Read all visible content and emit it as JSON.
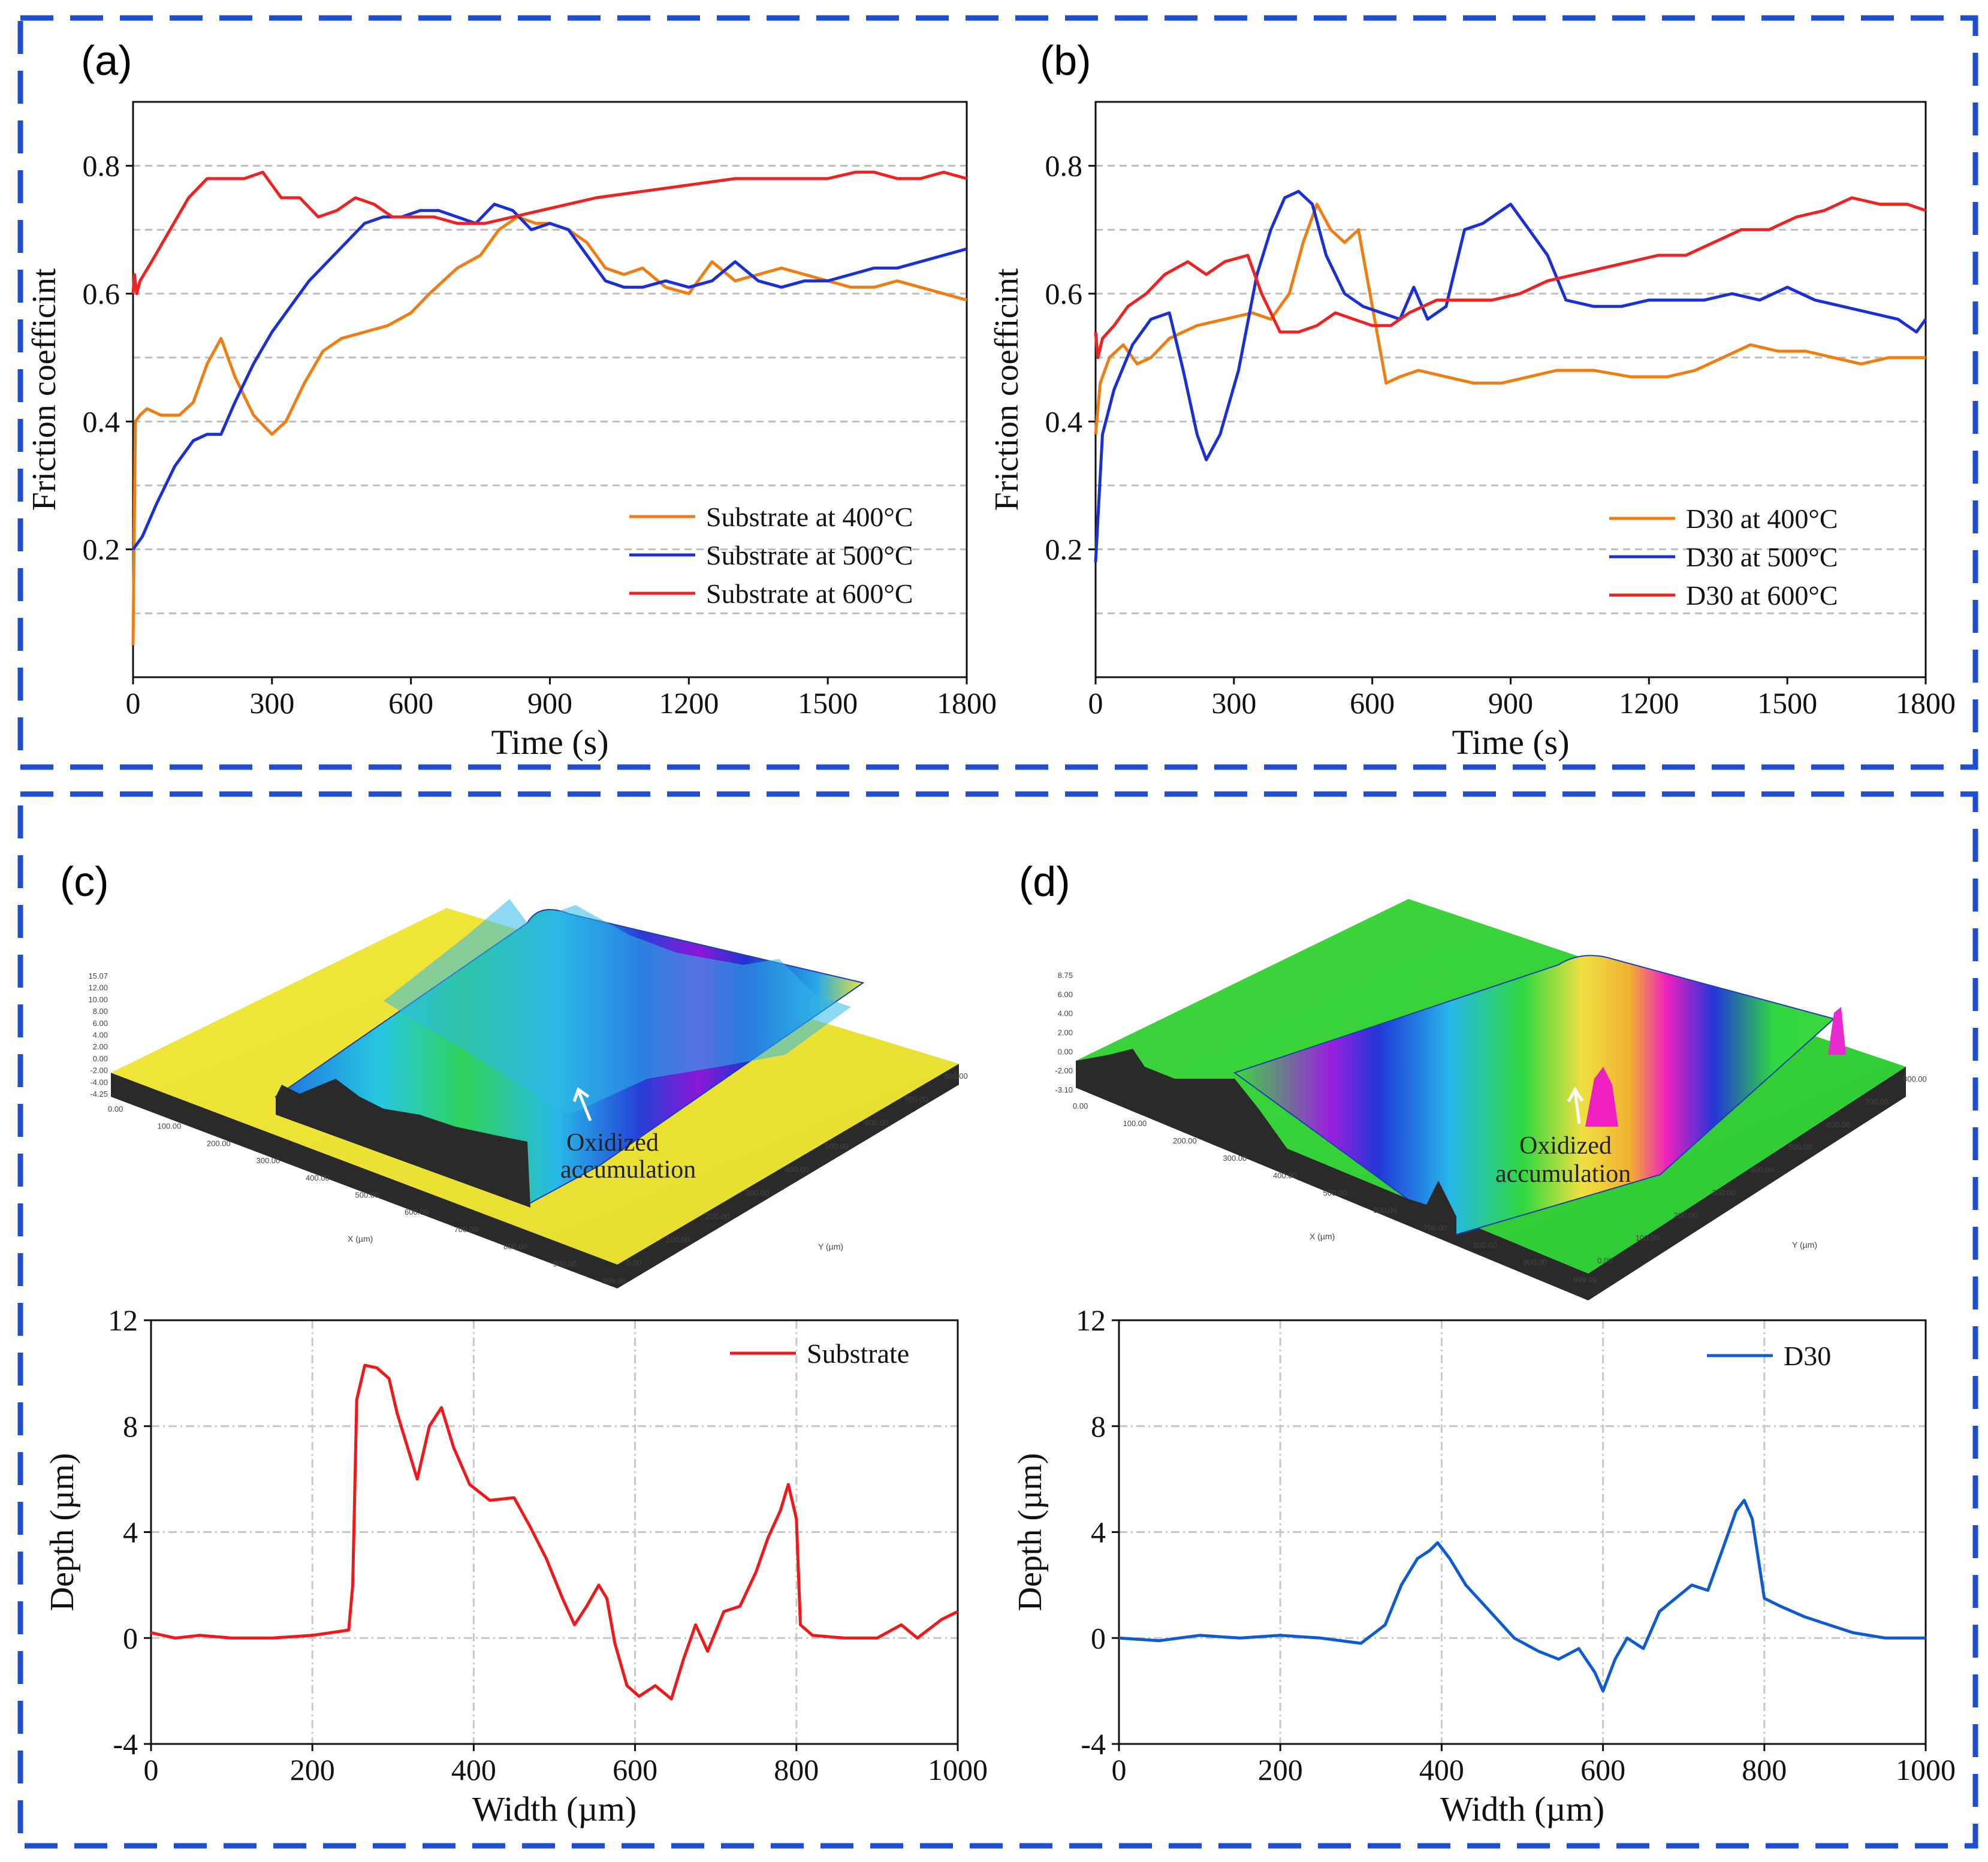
{
  "panels": {
    "a": {
      "label": "(a)"
    },
    "b": {
      "label": "(b)"
    },
    "c": {
      "label": "(c)"
    },
    "d": {
      "label": "(d)"
    }
  },
  "colors": {
    "frame": "#1f4fd0",
    "orange": "#f07d12",
    "blue": "#1a2fd6",
    "red": "#ee2222",
    "profile_red": "#f01818",
    "profile_blue": "#0d5bd1",
    "grid": "#bdbdbd",
    "surface_base": "#2a2a2a"
  },
  "chart_data": [
    {
      "id": "a",
      "type": "line",
      "xlabel": "Time (s)",
      "ylabel": "Friction coefficint",
      "xlim": [
        0,
        1800
      ],
      "ylim": [
        0,
        0.9
      ],
      "xticks": [
        0,
        300,
        600,
        900,
        1200,
        1500,
        1800
      ],
      "xtick_labels": [
        "0",
        "300",
        "600",
        "900",
        "1200",
        "1500",
        "1800"
      ],
      "yticks": [
        0.2,
        0.4,
        0.6,
        0.8
      ],
      "ytick_labels": [
        "0.2",
        "0.4",
        "0.6",
        "0.8"
      ],
      "grid_y": [
        0.1,
        0.2,
        0.3,
        0.4,
        0.5,
        0.6,
        0.7,
        0.8
      ],
      "series": [
        {
          "name": "Substrate at 400°C",
          "color": "#f07d12",
          "x": [
            0,
            5,
            15,
            30,
            60,
            100,
            130,
            160,
            190,
            220,
            260,
            300,
            330,
            370,
            410,
            450,
            500,
            550,
            600,
            640,
            700,
            750,
            790,
            830,
            870,
            900,
            940,
            980,
            1020,
            1060,
            1100,
            1150,
            1200,
            1250,
            1300,
            1350,
            1400,
            1450,
            1500,
            1550,
            1600,
            1650,
            1700,
            1750,
            1800
          ],
          "y": [
            0.05,
            0.4,
            0.41,
            0.42,
            0.41,
            0.41,
            0.43,
            0.49,
            0.53,
            0.47,
            0.41,
            0.38,
            0.4,
            0.46,
            0.51,
            0.53,
            0.54,
            0.55,
            0.57,
            0.6,
            0.64,
            0.66,
            0.7,
            0.72,
            0.71,
            0.71,
            0.7,
            0.68,
            0.64,
            0.63,
            0.64,
            0.61,
            0.6,
            0.65,
            0.62,
            0.63,
            0.64,
            0.63,
            0.62,
            0.61,
            0.61,
            0.62,
            0.61,
            0.6,
            0.59
          ]
        },
        {
          "name": "Substrate at 500°C",
          "color": "#1a2fd6",
          "x": [
            0,
            20,
            50,
            90,
            130,
            160,
            190,
            220,
            260,
            300,
            340,
            380,
            420,
            460,
            500,
            540,
            580,
            620,
            660,
            700,
            740,
            780,
            820,
            860,
            900,
            940,
            980,
            1020,
            1060,
            1100,
            1150,
            1200,
            1250,
            1300,
            1350,
            1400,
            1450,
            1500,
            1550,
            1600,
            1650,
            1700,
            1750,
            1800
          ],
          "y": [
            0.2,
            0.22,
            0.27,
            0.33,
            0.37,
            0.38,
            0.38,
            0.43,
            0.49,
            0.54,
            0.58,
            0.62,
            0.65,
            0.68,
            0.71,
            0.72,
            0.72,
            0.73,
            0.73,
            0.72,
            0.71,
            0.74,
            0.73,
            0.7,
            0.71,
            0.7,
            0.66,
            0.62,
            0.61,
            0.61,
            0.62,
            0.61,
            0.62,
            0.65,
            0.62,
            0.61,
            0.62,
            0.62,
            0.63,
            0.64,
            0.64,
            0.65,
            0.66,
            0.67
          ]
        },
        {
          "name": "Substrate at 600°C",
          "color": "#ee2222",
          "x": [
            0,
            3,
            8,
            15,
            40,
            80,
            120,
            160,
            200,
            240,
            280,
            320,
            360,
            400,
            440,
            480,
            520,
            560,
            600,
            650,
            700,
            760,
            820,
            880,
            940,
            1000,
            1100,
            1200,
            1300,
            1400,
            1500,
            1560,
            1600,
            1650,
            1700,
            1750,
            1800
          ],
          "y": [
            0.6,
            0.63,
            0.6,
            0.62,
            0.65,
            0.7,
            0.75,
            0.78,
            0.78,
            0.78,
            0.79,
            0.75,
            0.75,
            0.72,
            0.73,
            0.75,
            0.74,
            0.72,
            0.72,
            0.72,
            0.71,
            0.71,
            0.72,
            0.73,
            0.74,
            0.75,
            0.76,
            0.77,
            0.78,
            0.78,
            0.78,
            0.79,
            0.79,
            0.78,
            0.78,
            0.79,
            0.78
          ]
        }
      ],
      "legend_position": "lower-right"
    },
    {
      "id": "b",
      "type": "line",
      "xlabel": "Time (s)",
      "ylabel": "Friction coefficint",
      "xlim": [
        0,
        1800
      ],
      "ylim": [
        0,
        0.9
      ],
      "xticks": [
        0,
        300,
        600,
        900,
        1200,
        1500,
        1800
      ],
      "xtick_labels": [
        "0",
        "300",
        "600",
        "900",
        "1200",
        "1500",
        "1800"
      ],
      "yticks": [
        0.2,
        0.4,
        0.6,
        0.8
      ],
      "ytick_labels": [
        "0.2",
        "0.4",
        "0.6",
        "0.8"
      ],
      "grid_y": [
        0.1,
        0.2,
        0.3,
        0.4,
        0.5,
        0.6,
        0.7,
        0.8
      ],
      "series": [
        {
          "name": "D30 at 400°C",
          "color": "#f07d12",
          "x": [
            0,
            10,
            30,
            60,
            90,
            120,
            160,
            220,
            280,
            340,
            380,
            420,
            450,
            480,
            510,
            540,
            570,
            600,
            630,
            660,
            700,
            760,
            820,
            880,
            940,
            1000,
            1080,
            1160,
            1240,
            1300,
            1360,
            1420,
            1480,
            1540,
            1600,
            1660,
            1720,
            1800
          ],
          "y": [
            0.38,
            0.46,
            0.5,
            0.52,
            0.49,
            0.5,
            0.53,
            0.55,
            0.56,
            0.57,
            0.56,
            0.6,
            0.68,
            0.74,
            0.7,
            0.68,
            0.7,
            0.58,
            0.46,
            0.47,
            0.48,
            0.47,
            0.46,
            0.46,
            0.47,
            0.48,
            0.48,
            0.47,
            0.47,
            0.48,
            0.5,
            0.52,
            0.51,
            0.51,
            0.5,
            0.49,
            0.5,
            0.5
          ]
        },
        {
          "name": "D30 at 500°C",
          "color": "#1a2fd6",
          "x": [
            0,
            15,
            40,
            80,
            120,
            160,
            190,
            220,
            240,
            270,
            310,
            350,
            380,
            410,
            440,
            470,
            500,
            540,
            580,
            620,
            660,
            690,
            720,
            760,
            800,
            840,
            880,
            900,
            940,
            980,
            1020,
            1080,
            1140,
            1200,
            1260,
            1320,
            1380,
            1440,
            1500,
            1560,
            1620,
            1680,
            1740,
            1780,
            1800
          ],
          "y": [
            0.18,
            0.38,
            0.45,
            0.52,
            0.56,
            0.57,
            0.48,
            0.38,
            0.34,
            0.38,
            0.48,
            0.63,
            0.7,
            0.75,
            0.76,
            0.74,
            0.66,
            0.6,
            0.58,
            0.57,
            0.56,
            0.61,
            0.56,
            0.58,
            0.7,
            0.71,
            0.73,
            0.74,
            0.7,
            0.66,
            0.59,
            0.58,
            0.58,
            0.59,
            0.59,
            0.59,
            0.6,
            0.59,
            0.61,
            0.59,
            0.58,
            0.57,
            0.56,
            0.54,
            0.56
          ]
        },
        {
          "name": "D30 at 600°C",
          "color": "#ee2222",
          "x": [
            0,
            5,
            15,
            40,
            70,
            110,
            150,
            200,
            240,
            280,
            330,
            360,
            400,
            440,
            480,
            520,
            560,
            600,
            640,
            680,
            740,
            800,
            860,
            920,
            980,
            1040,
            1100,
            1160,
            1220,
            1280,
            1340,
            1400,
            1460,
            1520,
            1580,
            1640,
            1700,
            1760,
            1800
          ],
          "y": [
            0.54,
            0.5,
            0.53,
            0.55,
            0.58,
            0.6,
            0.63,
            0.65,
            0.63,
            0.65,
            0.66,
            0.6,
            0.54,
            0.54,
            0.55,
            0.57,
            0.56,
            0.55,
            0.55,
            0.57,
            0.59,
            0.59,
            0.59,
            0.6,
            0.62,
            0.63,
            0.64,
            0.65,
            0.66,
            0.66,
            0.68,
            0.7,
            0.7,
            0.72,
            0.73,
            0.75,
            0.74,
            0.74,
            0.73
          ]
        }
      ],
      "legend_position": "lower-right"
    },
    {
      "id": "c",
      "type": "line",
      "xlabel": "Width (µm)",
      "ylabel": "Depth (µm)",
      "xlim": [
        0,
        1000
      ],
      "ylim": [
        -4,
        12
      ],
      "xticks": [
        0,
        200,
        400,
        600,
        800,
        1000
      ],
      "xtick_labels": [
        "0",
        "200",
        "400",
        "600",
        "800",
        "1000"
      ],
      "yticks": [
        -4,
        0,
        4,
        8,
        12
      ],
      "ytick_labels": [
        "-4",
        "0",
        "4",
        "8",
        "12"
      ],
      "series": [
        {
          "name": "Substrate",
          "color": "#f01818",
          "x": [
            0,
            30,
            60,
            100,
            150,
            200,
            245,
            250,
            255,
            265,
            280,
            295,
            305,
            320,
            330,
            345,
            360,
            375,
            395,
            420,
            450,
            470,
            490,
            510,
            525,
            540,
            555,
            565,
            575,
            590,
            605,
            625,
            645,
            660,
            675,
            690,
            710,
            730,
            750,
            765,
            780,
            790,
            800,
            805,
            820,
            860,
            900,
            930,
            950,
            980,
            1000
          ],
          "y": [
            0.2,
            0.0,
            0.1,
            0.0,
            0.0,
            0.1,
            0.3,
            2.0,
            9.0,
            10.3,
            10.2,
            9.8,
            8.5,
            7.0,
            6.0,
            8.0,
            8.7,
            7.2,
            5.8,
            5.2,
            5.3,
            4.2,
            3.0,
            1.5,
            0.5,
            1.2,
            2.0,
            1.5,
            -0.2,
            -1.8,
            -2.2,
            -1.8,
            -2.3,
            -0.8,
            0.5,
            -0.5,
            1.0,
            1.2,
            2.5,
            3.8,
            4.8,
            5.8,
            4.5,
            0.5,
            0.1,
            0.0,
            0.0,
            0.5,
            0.0,
            0.7,
            1.0
          ]
        }
      ],
      "legend_position": "top-right"
    },
    {
      "id": "d",
      "type": "line",
      "xlabel": "Width (µm)",
      "ylabel": "Depth (µm)",
      "xlim": [
        0,
        1000
      ],
      "ylim": [
        -4,
        12
      ],
      "xticks": [
        0,
        200,
        400,
        600,
        800,
        1000
      ],
      "xtick_labels": [
        "0",
        "200",
        "400",
        "600",
        "800",
        "1000"
      ],
      "yticks": [
        -4,
        0,
        4,
        8,
        12
      ],
      "ytick_labels": [
        "-4",
        "0",
        "4",
        "8",
        "12"
      ],
      "series": [
        {
          "name": "D30",
          "color": "#0d5bd1",
          "x": [
            0,
            50,
            100,
            150,
            200,
            250,
            300,
            330,
            350,
            370,
            385,
            395,
            410,
            430,
            460,
            490,
            520,
            545,
            570,
            590,
            600,
            615,
            630,
            650,
            670,
            690,
            710,
            730,
            750,
            765,
            775,
            785,
            800,
            820,
            850,
            880,
            910,
            950,
            1000
          ],
          "y": [
            0.0,
            -0.1,
            0.1,
            0.0,
            0.1,
            0.0,
            -0.2,
            0.5,
            2.0,
            3.0,
            3.3,
            3.6,
            3.0,
            2.0,
            1.0,
            0.0,
            -0.5,
            -0.8,
            -0.4,
            -1.3,
            -2.0,
            -0.8,
            0.0,
            -0.4,
            1.0,
            1.5,
            2.0,
            1.8,
            3.5,
            4.8,
            5.2,
            4.5,
            1.5,
            1.2,
            0.8,
            0.5,
            0.2,
            0.0,
            0.0
          ]
        }
      ],
      "legend_position": "top-right"
    }
  ],
  "surfaces": {
    "c": {
      "z_ticks": [
        "15.07",
        "12.00",
        "10.00",
        "8.00",
        "6.00",
        "4.00",
        "2.00",
        "0.00",
        "-2.00",
        "-4.00",
        "-4.25"
      ],
      "x_ticks": [
        "0.00",
        "100.00",
        "200.00",
        "300.00",
        "400.00",
        "500.00",
        "600.00",
        "700.00",
        "800.00",
        "900.00",
        "999.99"
      ],
      "y_ticks": [
        "0.00",
        "100.00",
        "200.00",
        "300.00",
        "400.00",
        "500.00",
        "600.00",
        "700.00",
        "800.00"
      ],
      "x_axis_label": "X (µm)",
      "y_axis_label": "Y (µm)",
      "annotation": [
        "Oxidized",
        "accumulation"
      ]
    },
    "d": {
      "z_ticks": [
        "8.75",
        "6.00",
        "4.00",
        "2.00",
        "0.00",
        "-2.00",
        "-3.10"
      ],
      "x_ticks": [
        "0.00",
        "100.00",
        "200.00",
        "300.00",
        "400.00",
        "500.00",
        "600.00",
        "700.00",
        "800.00",
        "900.00",
        "999.99"
      ],
      "y_ticks": [
        "0.00",
        "100.00",
        "200.00",
        "300.00",
        "400.00",
        "500.00",
        "600.00",
        "700.00",
        "800.00"
      ],
      "x_axis_label": "X (µm)",
      "y_axis_label": "Y (µm)",
      "annotation": [
        "Oxidized",
        "accumulation"
      ]
    }
  }
}
